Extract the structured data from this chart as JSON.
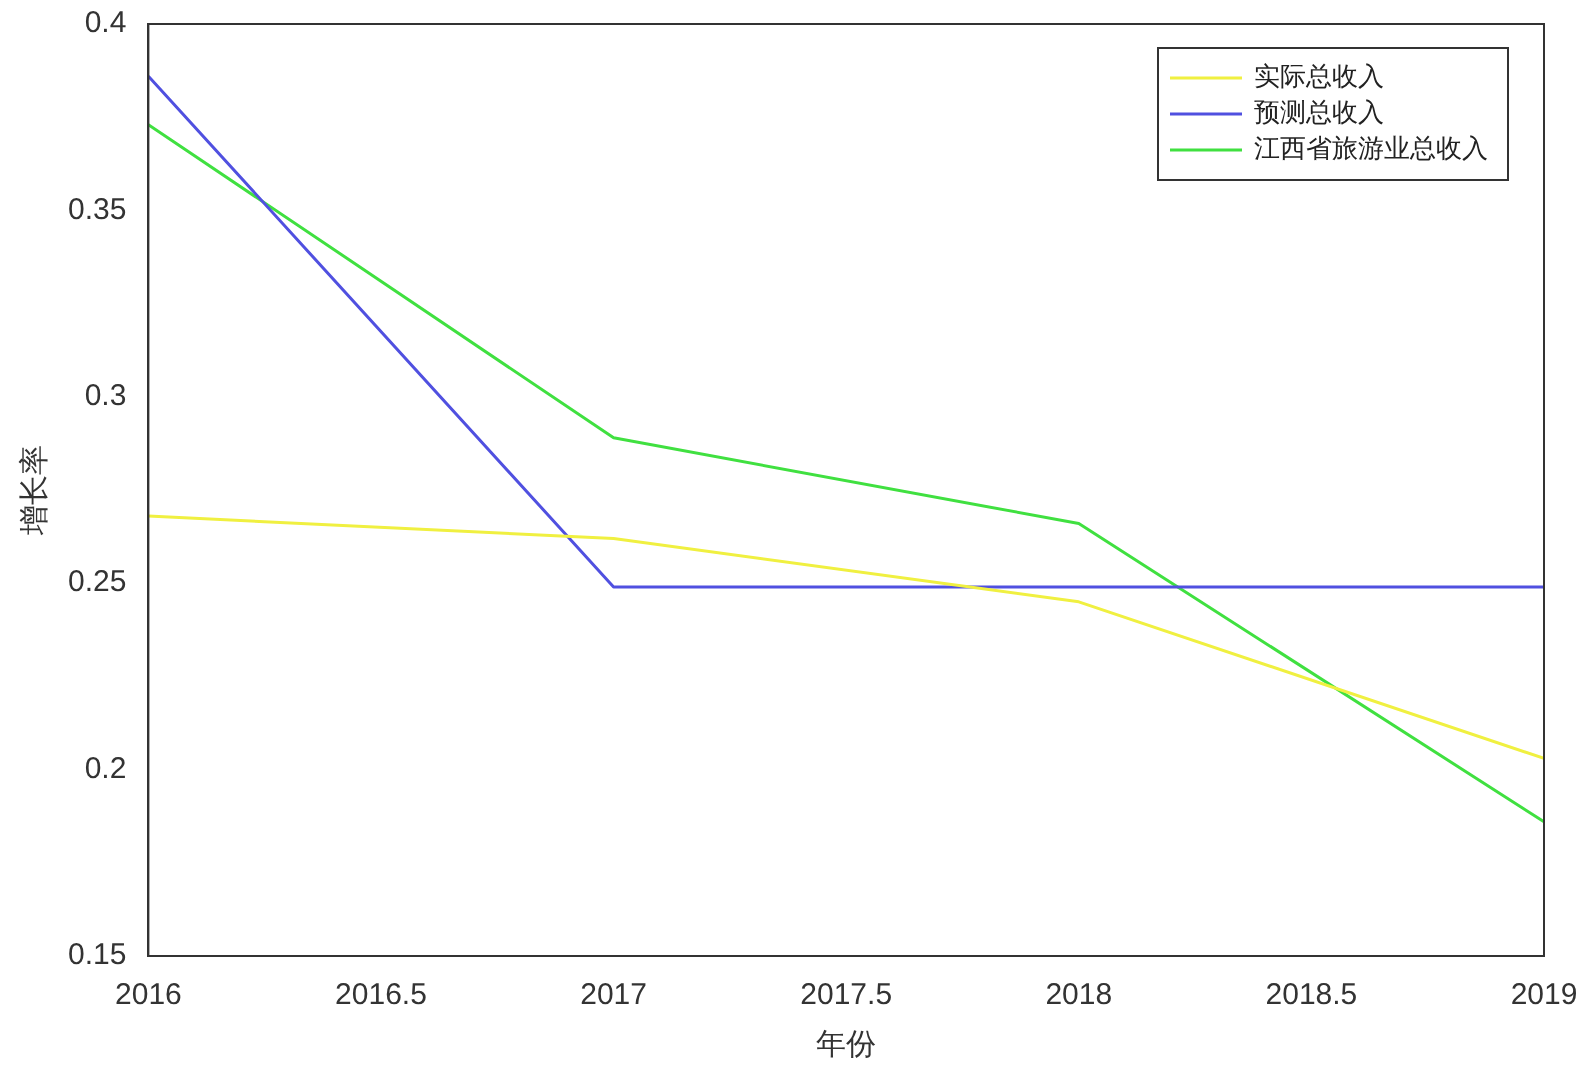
{
  "chart_data": {
    "type": "line",
    "xlabel": "年份",
    "ylabel": "增长率",
    "x": [
      2016,
      2017,
      2018,
      2019
    ],
    "series": [
      {
        "name": "实际总收入",
        "color": "#f0f040",
        "values": [
          0.268,
          0.262,
          0.245,
          0.203
        ]
      },
      {
        "name": "预测总收入",
        "color": "#5050e0",
        "values": [
          0.386,
          0.249,
          0.249,
          0.249
        ]
      },
      {
        "name": "江西省旅游业总收入",
        "color": "#40e040",
        "values": [
          0.373,
          0.289,
          0.266,
          0.186
        ]
      }
    ],
    "xlim": [
      2016,
      2019
    ],
    "xticks": [
      2016,
      2016.5,
      2017,
      2017.5,
      2018,
      2018.5,
      2019
    ],
    "ylim": [
      0.15,
      0.4
    ],
    "yticks": [
      0.15,
      0.2,
      0.25,
      0.3,
      0.35,
      0.4
    ],
    "grid": false,
    "legend": "top right",
    "marker": "none",
    "line_style": "solid"
  }
}
